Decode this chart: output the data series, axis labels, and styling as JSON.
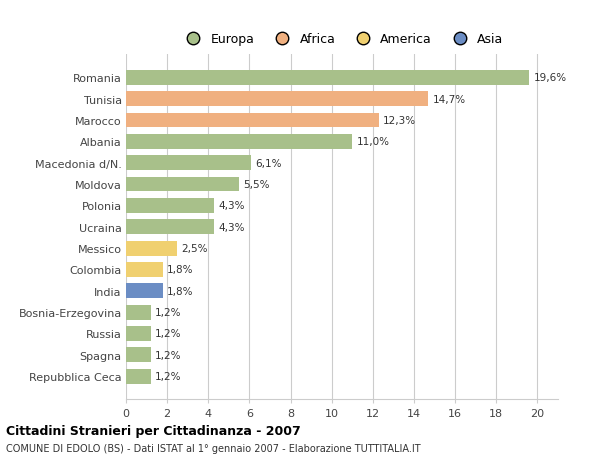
{
  "countries": [
    "Romania",
    "Tunisia",
    "Marocco",
    "Albania",
    "Macedonia d/N.",
    "Moldova",
    "Polonia",
    "Ucraina",
    "Messico",
    "Colombia",
    "India",
    "Bosnia-Erzegovina",
    "Russia",
    "Spagna",
    "Repubblica Ceca"
  ],
  "values": [
    19.6,
    14.7,
    12.3,
    11.0,
    6.1,
    5.5,
    4.3,
    4.3,
    2.5,
    1.8,
    1.8,
    1.2,
    1.2,
    1.2,
    1.2
  ],
  "labels": [
    "19,6%",
    "14,7%",
    "12,3%",
    "11,0%",
    "6,1%",
    "5,5%",
    "4,3%",
    "4,3%",
    "2,5%",
    "1,8%",
    "1,8%",
    "1,2%",
    "1,2%",
    "1,2%",
    "1,2%"
  ],
  "continents": [
    "Europa",
    "Africa",
    "Africa",
    "Europa",
    "Europa",
    "Europa",
    "Europa",
    "Europa",
    "America",
    "America",
    "Asia",
    "Europa",
    "Europa",
    "Europa",
    "Europa"
  ],
  "colors": {
    "Europa": "#a8c08a",
    "Africa": "#f0b080",
    "America": "#f0d070",
    "Asia": "#6b8dc4"
  },
  "legend_labels": [
    "Europa",
    "Africa",
    "America",
    "Asia"
  ],
  "legend_colors": [
    "#a8c08a",
    "#f0b080",
    "#f0d070",
    "#6b8dc4"
  ],
  "title": "Cittadini Stranieri per Cittadinanza - 2007",
  "subtitle": "COMUNE DI EDOLO (BS) - Dati ISTAT al 1° gennaio 2007 - Elaborazione TUTTITALIA.IT",
  "xlim": [
    0,
    21
  ],
  "xticks": [
    0,
    2,
    4,
    6,
    8,
    10,
    12,
    14,
    16,
    18,
    20
  ],
  "bg_color": "#ffffff",
  "grid_color": "#cccccc"
}
